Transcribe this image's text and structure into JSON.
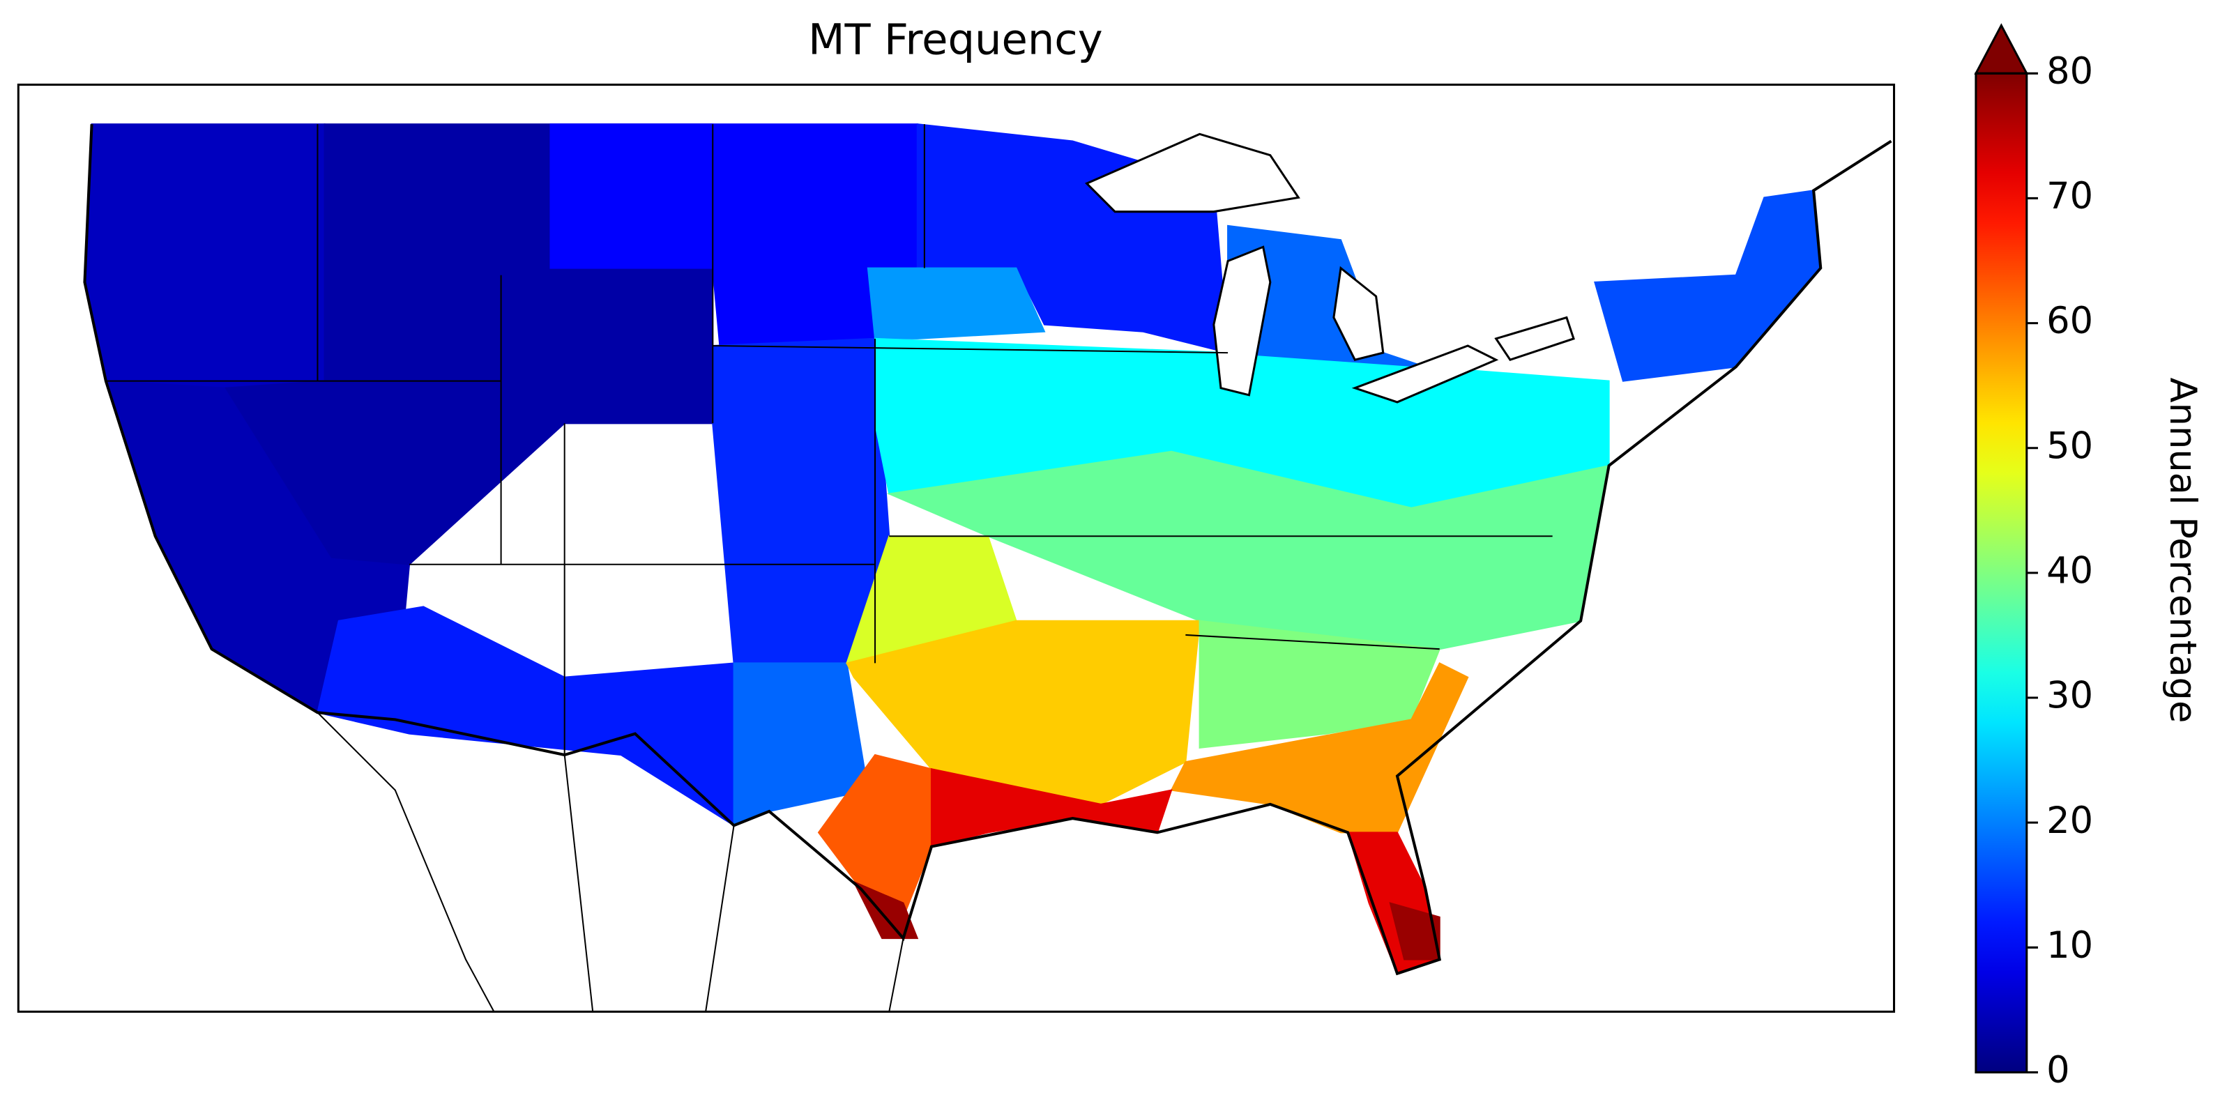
{
  "chart_data": {
    "type": "choropleth",
    "title": "MT Frequency",
    "values": [
      5,
      4,
      3,
      12,
      10,
      13,
      18,
      12,
      22,
      30,
      18,
      16,
      38,
      47,
      54,
      40,
      58,
      63,
      72,
      72,
      78,
      78
    ],
    "colorbar": {
      "label": "Annual Percentage",
      "cmap": "jet",
      "extend": "max",
      "lim": [
        0,
        80
      ],
      "ticks": [
        0,
        10,
        20,
        30,
        40,
        50,
        60,
        70,
        80
      ]
    }
  }
}
